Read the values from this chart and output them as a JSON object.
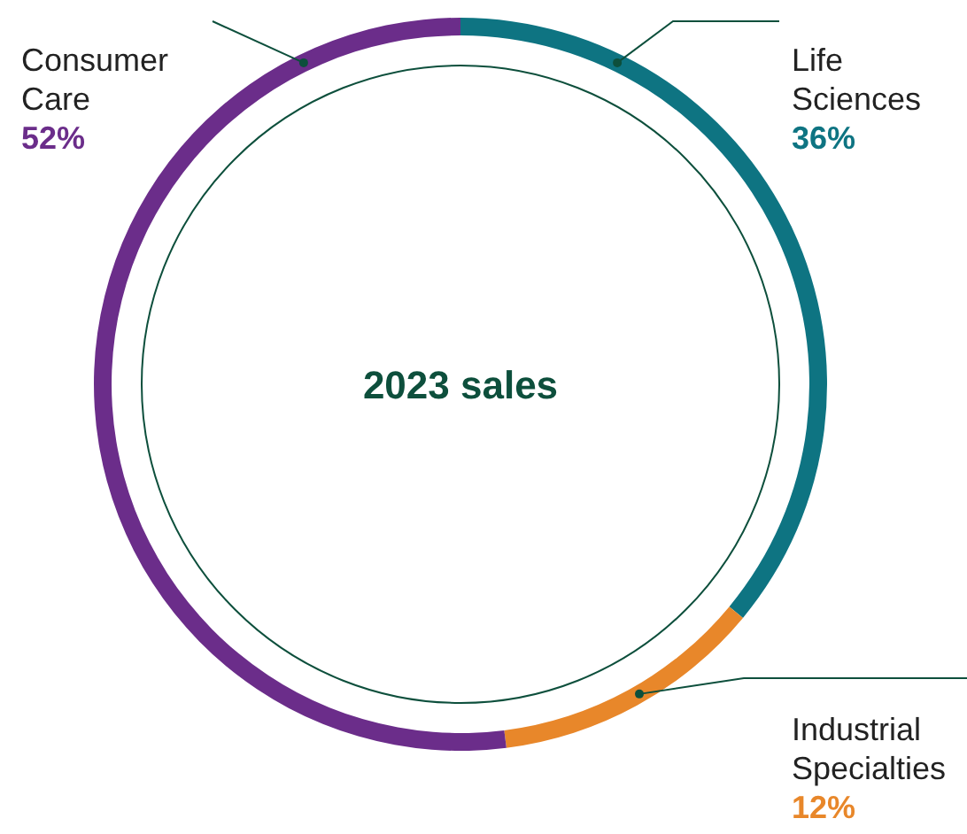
{
  "chart_data": {
    "type": "donut",
    "title": "2023 sales",
    "categories": [
      "Life Sciences",
      "Industrial Specialties",
      "Consumer Care"
    ],
    "values": [
      36,
      12,
      52
    ],
    "colors": [
      "#0e7482",
      "#e8872a",
      "#6b2d8a"
    ],
    "value_labels": [
      "36%",
      "12%",
      "52%"
    ]
  }
}
